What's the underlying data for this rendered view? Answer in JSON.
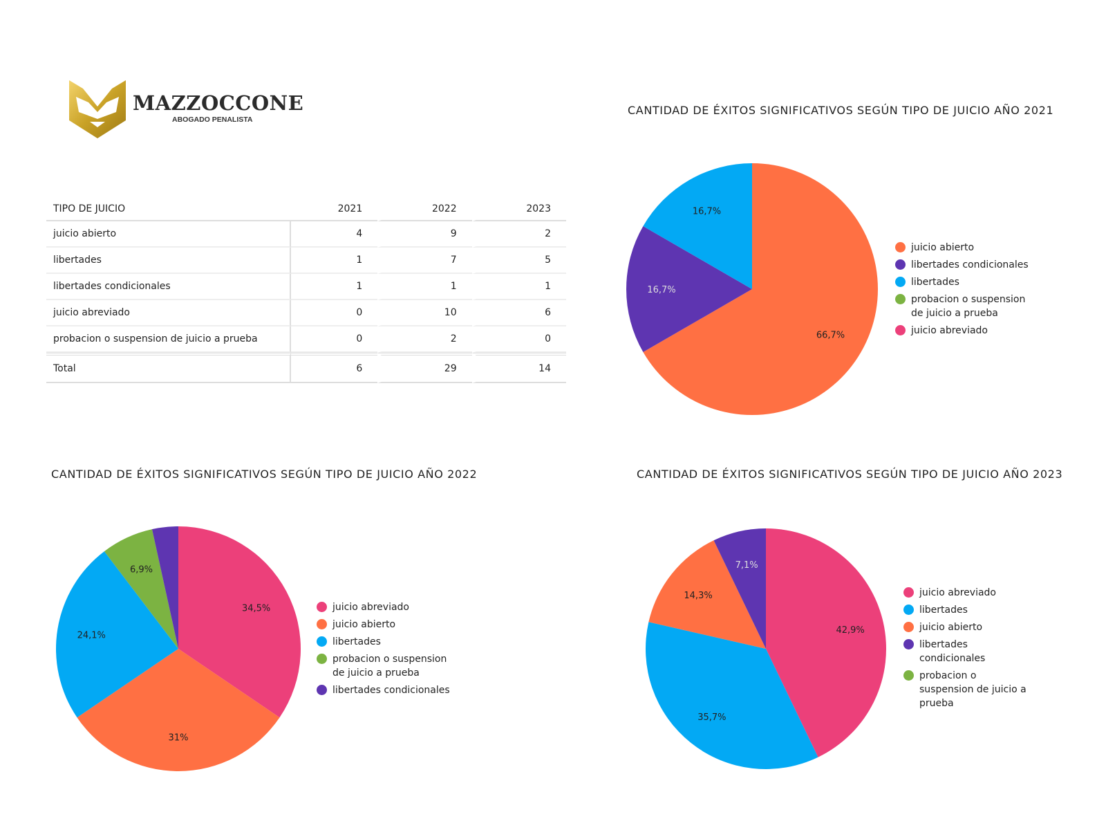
{
  "logo": {
    "name": "MAZZOCCONE",
    "subtitle": "ABOGADO PENALISTA"
  },
  "colors": {
    "juicio abierto": "#FF7043",
    "libertades condicionales": "#5E35B1",
    "libertades": "#03A9F4",
    "probacion o suspension de juicio a prueba": "#7CB342",
    "juicio abreviado": "#EC407A",
    "gold": "#C9A227"
  },
  "table": {
    "headers": [
      "TIPO DE JUICIO",
      "2021",
      "2022",
      "2023"
    ],
    "rows": [
      [
        "juicio abierto",
        "4",
        "9",
        "2"
      ],
      [
        "libertades",
        "1",
        "7",
        "5"
      ],
      [
        "libertades condicionales",
        "1",
        "1",
        "1"
      ],
      [
        "juicio abreviado",
        "0",
        "10",
        "6"
      ],
      [
        "probacion o suspension de juicio a prueba",
        "0",
        "2",
        "0"
      ]
    ],
    "total": [
      "Total",
      "6",
      "29",
      "14"
    ]
  },
  "chart_data": [
    {
      "type": "pie",
      "title": "CANTIDAD DE ÉXITOS SIGNIFICATIVOS SEGÚN TIPO DE JUICIO AÑO 2021",
      "slices": [
        {
          "name": "juicio abierto",
          "value": 4,
          "label": "66,7%"
        },
        {
          "name": "libertades condicionales",
          "value": 1,
          "label": "16,7%"
        },
        {
          "name": "libertades",
          "value": 1,
          "label": "16,7%"
        }
      ],
      "legend": [
        "juicio abierto",
        "libertades condicionales",
        "libertades",
        "probacion o suspension de juicio a prueba",
        "juicio abreviado"
      ],
      "legend_position": "right"
    },
    {
      "type": "pie",
      "title": "CANTIDAD DE ÉXITOS SIGNIFICATIVOS SEGÚN TIPO DE JUICIO AÑO 2022",
      "slices": [
        {
          "name": "juicio abreviado",
          "value": 10,
          "label": "34,5%"
        },
        {
          "name": "juicio abierto",
          "value": 9,
          "label": "31%"
        },
        {
          "name": "libertades",
          "value": 7,
          "label": "24,1%"
        },
        {
          "name": "probacion o suspension de juicio a prueba",
          "value": 2,
          "label": "6,9%"
        },
        {
          "name": "libertades condicionales",
          "value": 1,
          "label": ""
        }
      ],
      "legend": [
        "juicio abreviado",
        "juicio abierto",
        "libertades",
        "probacion o suspension de juicio a prueba",
        "libertades condicionales"
      ],
      "legend_position": "right"
    },
    {
      "type": "pie",
      "title": "CANTIDAD DE ÉXITOS SIGNIFICATIVOS  SEGÚN TIPO DE JUICIO AÑO 2023",
      "slices": [
        {
          "name": "juicio abreviado",
          "value": 6,
          "label": "42,9%"
        },
        {
          "name": "libertades",
          "value": 5,
          "label": "35,7%"
        },
        {
          "name": "juicio abierto",
          "value": 2,
          "label": "14,3%"
        },
        {
          "name": "libertades condicionales",
          "value": 1,
          "label": "7,1%"
        }
      ],
      "legend": [
        "juicio abreviado",
        "libertades",
        "juicio abierto",
        "libertades condicionales",
        "probacion o suspension de juicio a prueba"
      ],
      "legend_position": "right"
    }
  ]
}
